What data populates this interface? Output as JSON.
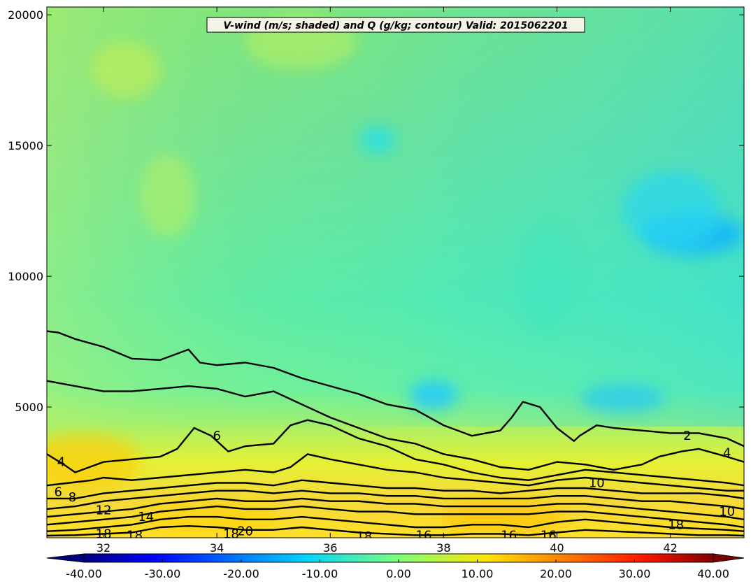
{
  "chart_data": {
    "type": "heatmap",
    "title": "V-wind (m/s; shaded) and Q (g/kg; contour) Valid: 2015062201",
    "xlabel": "",
    "ylabel": "",
    "xlim": [
      31,
      43.3
    ],
    "ylim": [
      0,
      20300
    ],
    "x_ticks": [
      32,
      34,
      36,
      38,
      40,
      42
    ],
    "y_ticks": [
      5000,
      10000,
      15000,
      20000
    ],
    "colorbar": {
      "min": -40,
      "max": 40,
      "ticks": [
        -40,
        -30,
        -20,
        -10,
        0,
        10,
        20,
        30,
        40
      ],
      "tick_labels": [
        "-40.00",
        "-30.00",
        "-20.00",
        "-10.00",
        "0.00",
        "10.00",
        "20.00",
        "30.00",
        "40.00"
      ],
      "orientation": "horizontal",
      "extend": "both",
      "colormap": "jet"
    },
    "contour_labels": [
      {
        "text": "2",
        "x": 42.3,
        "y": 3900
      },
      {
        "text": "4",
        "x": 43.0,
        "y": 3250
      },
      {
        "text": "4",
        "x": 31.25,
        "y": 2900
      },
      {
        "text": "6",
        "x": 34.0,
        "y": 3900
      },
      {
        "text": "6",
        "x": 31.2,
        "y": 1750
      },
      {
        "text": "8",
        "x": 31.45,
        "y": 1550
      },
      {
        "text": "10",
        "x": 40.7,
        "y": 2100
      },
      {
        "text": "10",
        "x": 43.0,
        "y": 1000
      },
      {
        "text": "12",
        "x": 32.0,
        "y": 1050
      },
      {
        "text": "14",
        "x": 32.75,
        "y": 800
      },
      {
        "text": "16",
        "x": 37.65,
        "y": 100
      },
      {
        "text": "16",
        "x": 39.15,
        "y": 100
      },
      {
        "text": "16",
        "x": 39.85,
        "y": 100
      },
      {
        "text": "18",
        "x": 32.0,
        "y": 150
      },
      {
        "text": "18",
        "x": 32.55,
        "y": 100
      },
      {
        "text": "18",
        "x": 34.25,
        "y": 150
      },
      {
        "text": "20",
        "x": 34.5,
        "y": 250
      },
      {
        "text": "18",
        "x": 36.6,
        "y": 50
      },
      {
        "text": "18",
        "x": 42.1,
        "y": 500
      }
    ],
    "contour_lines": [
      {
        "level": 2,
        "points": [
          [
            31,
            7900
          ],
          [
            31.2,
            7850
          ],
          [
            31.5,
            7600
          ],
          [
            32,
            7300
          ],
          [
            32.5,
            6850
          ],
          [
            33,
            6800
          ],
          [
            33.5,
            7200
          ],
          [
            33.7,
            6700
          ],
          [
            34,
            6600
          ],
          [
            34.5,
            6700
          ],
          [
            35,
            6500
          ],
          [
            35.5,
            6100
          ],
          [
            36,
            5800
          ],
          [
            36.5,
            5500
          ],
          [
            37,
            5100
          ],
          [
            37.5,
            4900
          ],
          [
            38,
            4300
          ],
          [
            38.5,
            3900
          ],
          [
            39,
            4100
          ],
          [
            39.2,
            4600
          ],
          [
            39.4,
            5200
          ],
          [
            39.7,
            5000
          ],
          [
            40,
            4200
          ],
          [
            40.3,
            3700
          ],
          [
            40.4,
            3900
          ],
          [
            40.7,
            4300
          ],
          [
            41,
            4200
          ],
          [
            41.5,
            4100
          ],
          [
            42,
            4000
          ],
          [
            42.5,
            4000
          ],
          [
            43,
            3800
          ],
          [
            43.3,
            3500
          ]
        ]
      },
      {
        "level": 4,
        "points": [
          [
            31,
            6000
          ],
          [
            31.5,
            5800
          ],
          [
            32,
            5600
          ],
          [
            32.5,
            5600
          ],
          [
            33,
            5700
          ],
          [
            33.5,
            5800
          ],
          [
            34,
            5700
          ],
          [
            34.5,
            5400
          ],
          [
            35,
            5600
          ],
          [
            35.4,
            5200
          ],
          [
            35.7,
            4900
          ],
          [
            36,
            4600
          ],
          [
            36.5,
            4200
          ],
          [
            37,
            3800
          ],
          [
            37.5,
            3600
          ],
          [
            38,
            3200
          ],
          [
            38.5,
            3000
          ],
          [
            39,
            2700
          ],
          [
            39.5,
            2600
          ],
          [
            40,
            2900
          ],
          [
            40.5,
            2800
          ],
          [
            41,
            2600
          ],
          [
            41.5,
            2800
          ],
          [
            41.8,
            3100
          ],
          [
            42.2,
            3300
          ],
          [
            42.5,
            3400
          ],
          [
            43,
            3100
          ],
          [
            43.3,
            2900
          ]
        ]
      },
      {
        "level": 4,
        "points": [
          [
            31,
            3200
          ],
          [
            31.3,
            2800
          ],
          [
            31.5,
            2500
          ],
          [
            32,
            2900
          ],
          [
            32.5,
            3000
          ],
          [
            33,
            3100
          ],
          [
            33.3,
            3400
          ],
          [
            33.6,
            4200
          ],
          [
            33.9,
            3900
          ],
          [
            34.2,
            3300
          ],
          [
            34.5,
            3500
          ],
          [
            35,
            3600
          ],
          [
            35.3,
            4300
          ],
          [
            35.6,
            4500
          ],
          [
            36,
            4300
          ],
          [
            36.5,
            3800
          ],
          [
            37,
            3500
          ],
          [
            37.5,
            3000
          ],
          [
            38,
            2800
          ],
          [
            38.5,
            2500
          ],
          [
            39,
            2300
          ],
          [
            39.5,
            2200
          ],
          [
            40,
            2400
          ],
          [
            40.5,
            2600
          ],
          [
            41,
            2500
          ],
          [
            41.5,
            2400
          ],
          [
            42,
            2300
          ],
          [
            42.5,
            2200
          ],
          [
            43,
            2100
          ],
          [
            43.3,
            2000
          ]
        ]
      },
      {
        "level": 6,
        "points": [
          [
            31,
            2000
          ],
          [
            31.4,
            2100
          ],
          [
            31.8,
            2200
          ],
          [
            32,
            2300
          ],
          [
            32.5,
            2200
          ],
          [
            33,
            2300
          ],
          [
            33.5,
            2400
          ],
          [
            34,
            2500
          ],
          [
            34.5,
            2600
          ],
          [
            35,
            2500
          ],
          [
            35.3,
            2700
          ],
          [
            35.6,
            3200
          ],
          [
            36,
            3000
          ],
          [
            36.5,
            2800
          ],
          [
            37,
            2600
          ],
          [
            37.5,
            2500
          ],
          [
            38,
            2300
          ],
          [
            38.5,
            2200
          ],
          [
            39,
            2100
          ],
          [
            39.5,
            2000
          ],
          [
            40,
            2200
          ],
          [
            40.5,
            2300
          ],
          [
            41,
            2200
          ],
          [
            41.5,
            2100
          ],
          [
            42,
            2000
          ],
          [
            42.5,
            1900
          ],
          [
            43,
            1800
          ],
          [
            43.3,
            1800
          ]
        ]
      },
      {
        "level": 8,
        "points": [
          [
            31,
            1500
          ],
          [
            31.5,
            1500
          ],
          [
            32,
            1700
          ],
          [
            32.5,
            1800
          ],
          [
            33,
            1900
          ],
          [
            33.5,
            2000
          ],
          [
            34,
            2100
          ],
          [
            34.5,
            2100
          ],
          [
            35,
            2000
          ],
          [
            35.5,
            2200
          ],
          [
            36,
            2100
          ],
          [
            36.5,
            2000
          ],
          [
            37,
            1900
          ],
          [
            37.5,
            1900
          ],
          [
            38,
            1800
          ],
          [
            38.5,
            1800
          ],
          [
            39,
            1700
          ],
          [
            39.5,
            1800
          ],
          [
            40,
            1900
          ],
          [
            40.5,
            1900
          ],
          [
            41,
            1800
          ],
          [
            41.5,
            1700
          ],
          [
            42,
            1700
          ],
          [
            42.5,
            1700
          ],
          [
            43,
            1600
          ],
          [
            43.3,
            1500
          ]
        ]
      },
      {
        "level": 10,
        "points": [
          [
            31,
            1100
          ],
          [
            31.5,
            1200
          ],
          [
            32,
            1400
          ],
          [
            32.5,
            1500
          ],
          [
            33,
            1600
          ],
          [
            33.5,
            1700
          ],
          [
            34,
            1800
          ],
          [
            34.5,
            1800
          ],
          [
            35,
            1700
          ],
          [
            35.5,
            1800
          ],
          [
            36,
            1700
          ],
          [
            36.5,
            1700
          ],
          [
            37,
            1600
          ],
          [
            37.5,
            1600
          ],
          [
            38,
            1500
          ],
          [
            38.5,
            1500
          ],
          [
            39,
            1500
          ],
          [
            39.5,
            1500
          ],
          [
            40,
            1600
          ],
          [
            40.5,
            1600
          ],
          [
            41,
            1500
          ],
          [
            41.5,
            1400
          ],
          [
            42,
            1400
          ],
          [
            42.5,
            1300
          ],
          [
            43,
            1200
          ],
          [
            43.3,
            1100
          ]
        ]
      },
      {
        "level": 12,
        "points": [
          [
            31,
            800
          ],
          [
            31.5,
            900
          ],
          [
            32,
            1000
          ],
          [
            32.5,
            1100
          ],
          [
            33,
            1300
          ],
          [
            33.5,
            1400
          ],
          [
            34,
            1500
          ],
          [
            34.5,
            1400
          ],
          [
            35,
            1400
          ],
          [
            35.5,
            1500
          ],
          [
            36,
            1400
          ],
          [
            36.5,
            1400
          ],
          [
            37,
            1300
          ],
          [
            37.5,
            1300
          ],
          [
            38,
            1200
          ],
          [
            38.5,
            1200
          ],
          [
            39,
            1200
          ],
          [
            39.5,
            1200
          ],
          [
            40,
            1300
          ],
          [
            40.5,
            1300
          ],
          [
            41,
            1200
          ],
          [
            41.5,
            1100
          ],
          [
            42,
            1000
          ],
          [
            42.5,
            900
          ],
          [
            43,
            800
          ],
          [
            43.3,
            700
          ]
        ]
      },
      {
        "level": 14,
        "points": [
          [
            31,
            500
          ],
          [
            31.5,
            600
          ],
          [
            32,
            700
          ],
          [
            32.5,
            800
          ],
          [
            33,
            1000
          ],
          [
            33.5,
            1100
          ],
          [
            34,
            1200
          ],
          [
            34.5,
            1100
          ],
          [
            35,
            1100
          ],
          [
            35.5,
            1200
          ],
          [
            36,
            1100
          ],
          [
            36.5,
            1000
          ],
          [
            37,
            1000
          ],
          [
            37.5,
            900
          ],
          [
            38,
            900
          ],
          [
            38.5,
            900
          ],
          [
            39,
            900
          ],
          [
            39.5,
            900
          ],
          [
            40,
            1000
          ],
          [
            40.5,
            1000
          ],
          [
            41,
            900
          ],
          [
            41.5,
            800
          ],
          [
            42,
            700
          ],
          [
            42.5,
            600
          ],
          [
            43,
            500
          ],
          [
            43.3,
            400
          ]
        ]
      },
      {
        "level": 16,
        "points": [
          [
            31,
            250
          ],
          [
            31.5,
            300
          ],
          [
            32,
            400
          ],
          [
            32.5,
            500
          ],
          [
            33,
            700
          ],
          [
            33.5,
            800
          ],
          [
            34,
            800
          ],
          [
            34.5,
            700
          ],
          [
            35,
            700
          ],
          [
            35.5,
            800
          ],
          [
            36,
            700
          ],
          [
            36.5,
            600
          ],
          [
            37,
            500
          ],
          [
            37.5,
            400
          ],
          [
            38,
            400
          ],
          [
            38.5,
            500
          ],
          [
            39,
            500
          ],
          [
            39.5,
            400
          ],
          [
            40,
            600
          ],
          [
            40.5,
            700
          ],
          [
            41,
            600
          ],
          [
            41.5,
            500
          ],
          [
            42,
            400
          ],
          [
            42.5,
            350
          ],
          [
            43,
            300
          ],
          [
            43.3,
            250
          ]
        ]
      },
      {
        "level": 18,
        "points": [
          [
            31,
            80
          ],
          [
            31.5,
            100
          ],
          [
            32,
            150
          ],
          [
            32.5,
            200
          ],
          [
            33,
            400
          ],
          [
            33.5,
            450
          ],
          [
            34,
            400
          ],
          [
            34.5,
            300
          ],
          [
            35,
            300
          ],
          [
            35.5,
            400
          ],
          [
            36,
            300
          ],
          [
            36.5,
            200
          ],
          [
            37,
            150
          ],
          [
            37.5,
            100
          ],
          [
            38,
            100
          ],
          [
            38.5,
            150
          ],
          [
            39,
            150
          ],
          [
            39.5,
            100
          ],
          [
            40,
            200
          ],
          [
            40.5,
            300
          ],
          [
            41,
            250
          ],
          [
            41.5,
            200
          ],
          [
            42,
            150
          ],
          [
            42.5,
            100
          ],
          [
            43,
            100
          ],
          [
            43.3,
            80
          ]
        ]
      }
    ]
  }
}
